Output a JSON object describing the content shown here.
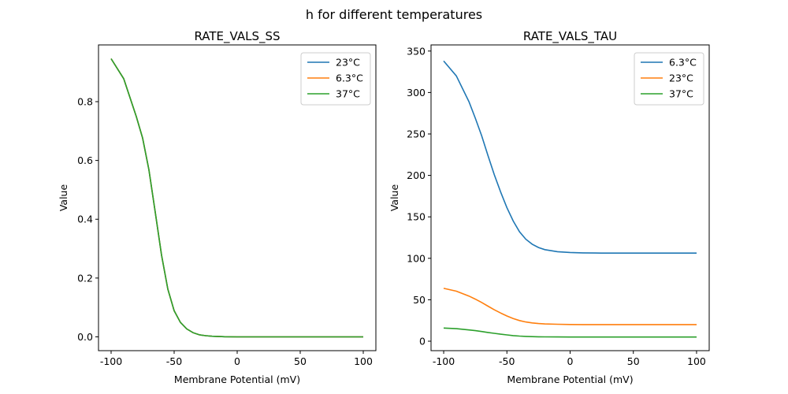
{
  "chart_data": {
    "suptitle": "h for different temperatures",
    "plots": [
      {
        "type": "line",
        "title": "RATE_VALS_SS",
        "xlabel": "Membrane Potential (mV)",
        "ylabel": "Value",
        "xlim": [
          -110,
          110
        ],
        "ylim": [
          -0.047,
          0.993
        ],
        "xticks": [
          -100,
          -50,
          0,
          50,
          100
        ],
        "yticks": [
          0.0,
          0.2,
          0.4,
          0.6,
          0.8
        ],
        "ytick_labels": [
          "0.0",
          "0.2",
          "0.4",
          "0.6",
          "0.8"
        ],
        "legend_placement": "upper-right",
        "x": [
          -100,
          -90,
          -80,
          -75,
          -70,
          -65,
          -60,
          -55,
          -50,
          -45,
          -40,
          -35,
          -30,
          -25,
          -20,
          -10,
          0,
          10,
          20,
          30,
          40,
          50,
          60,
          70,
          80,
          90,
          100
        ],
        "series": [
          {
            "name": "23°C",
            "color": "#1f77b4",
            "values": [
              0.946,
              0.878,
              0.749,
              0.676,
              0.568,
              0.424,
              0.278,
              0.162,
              0.089,
              0.049,
              0.027,
              0.014,
              0.007,
              0.004,
              0.002,
              0.0005,
              0,
              0,
              0,
              0,
              0,
              0,
              0,
              0,
              0,
              0,
              0
            ]
          },
          {
            "name": "6.3°C",
            "color": "#ff7f0e",
            "values": [
              0.946,
              0.878,
              0.749,
              0.676,
              0.568,
              0.424,
              0.278,
              0.162,
              0.089,
              0.049,
              0.027,
              0.014,
              0.007,
              0.004,
              0.002,
              0.0005,
              0,
              0,
              0,
              0,
              0,
              0,
              0,
              0,
              0,
              0,
              0
            ]
          },
          {
            "name": "37°C",
            "color": "#2ca02c",
            "values": [
              0.946,
              0.878,
              0.749,
              0.676,
              0.568,
              0.424,
              0.278,
              0.162,
              0.089,
              0.049,
              0.027,
              0.014,
              0.007,
              0.004,
              0.002,
              0.0005,
              0,
              0,
              0,
              0,
              0,
              0,
              0,
              0,
              0,
              0,
              0
            ]
          }
        ]
      },
      {
        "type": "line",
        "title": "RATE_VALS_TAU",
        "xlabel": "Membrane Potential (mV)",
        "ylabel": "Value",
        "xlim": [
          -110,
          110
        ],
        "ylim": [
          -11.4,
          357.4
        ],
        "xticks": [
          -100,
          -50,
          0,
          50,
          100
        ],
        "yticks": [
          0,
          50,
          100,
          150,
          200,
          250,
          300,
          350
        ],
        "ytick_labels": [
          "0",
          "50",
          "100",
          "150",
          "200",
          "250",
          "300",
          "350"
        ],
        "legend_placement": "upper-right",
        "x": [
          -100,
          -90,
          -80,
          -75,
          -70,
          -65,
          -60,
          -55,
          -50,
          -45,
          -40,
          -35,
          -30,
          -25,
          -20,
          -10,
          0,
          10,
          20,
          30,
          40,
          50,
          60,
          70,
          80,
          90,
          100
        ],
        "series": [
          {
            "name": "6.3°C",
            "color": "#1f77b4",
            "values": [
              338,
              320,
              289,
              269,
              248,
              224,
              201,
              180,
              161,
              145,
              132,
              123,
              117,
              113,
              110.5,
              108,
              107,
              106.6,
              106.4,
              106.3,
              106.3,
              106.3,
              106.3,
              106.3,
              106.3,
              106.3,
              106.3
            ]
          },
          {
            "name": "23°C",
            "color": "#ff7f0e",
            "values": [
              63.8,
              60.4,
              54.5,
              50.8,
              46.8,
              42.3,
              37.9,
              34.0,
              30.4,
              27.4,
              24.9,
              23.2,
              22.1,
              21.3,
              20.8,
              20.4,
              20.2,
              20.1,
              20.1,
              20.1,
              20.1,
              20.1,
              20.1,
              20.1,
              20.1,
              20.1,
              20.1
            ]
          },
          {
            "name": "37°C",
            "color": "#2ca02c",
            "values": [
              15.9,
              15.1,
              13.6,
              12.7,
              11.7,
              10.6,
              9.5,
              8.5,
              7.6,
              6.8,
              6.2,
              5.8,
              5.5,
              5.3,
              5.2,
              5.1,
              5.0,
              5.0,
              5.0,
              5.0,
              5.0,
              5.0,
              5.0,
              5.0,
              5.0,
              5.0,
              5.0
            ]
          }
        ]
      }
    ]
  }
}
